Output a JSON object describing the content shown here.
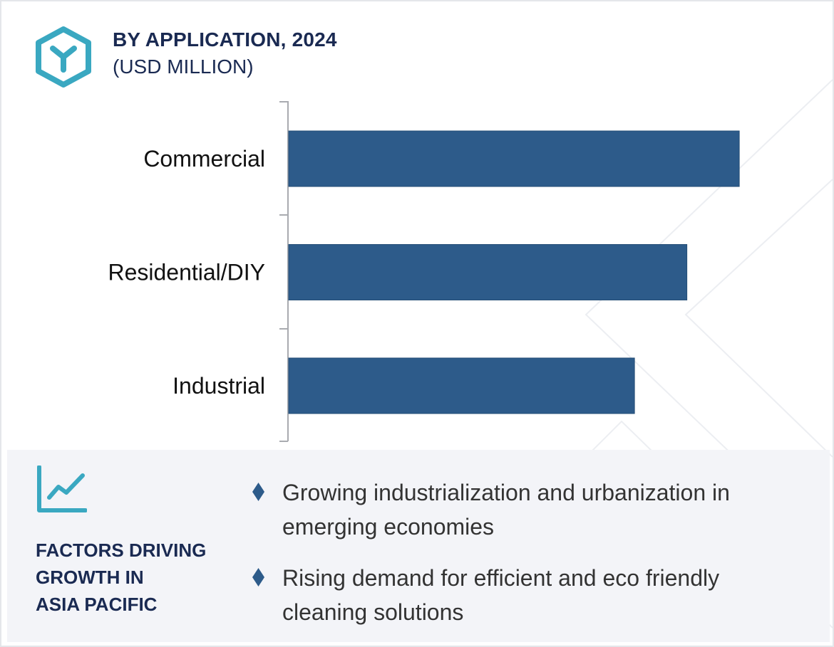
{
  "header": {
    "title": "BY APPLICATION, 2024",
    "subtitle": "(USD MILLION)",
    "logo_icon": "hexagon-y-logo-icon"
  },
  "chart_data": {
    "type": "bar",
    "orientation": "horizontal",
    "title": "BY APPLICATION, 2024",
    "ylabel": "(USD MILLION)",
    "xlabel": "",
    "categories": [
      "Commercial",
      "Residential/DIY",
      "Industrial"
    ],
    "values": [
      86,
      76,
      66
    ],
    "xlim": [
      0,
      100
    ],
    "grid": false,
    "legend": "none",
    "bar_color": "#2d5b8a",
    "note": "No value axis shown; values are relative estimates from bar lengths"
  },
  "factors": {
    "title_lines": [
      "FACTORS DRIVING",
      "GROWTH IN",
      "ASIA PACIFIC"
    ],
    "icon": "trend-chart-icon",
    "bullet_icon": "diamond-bullet-icon",
    "items": [
      {
        "line1": "Growing industrialization and urbanization in",
        "line2": "emerging economies"
      },
      {
        "line1": "Rising demand for efficient and eco friendly",
        "line2": "cleaning solutions"
      }
    ]
  },
  "colors": {
    "accent": "#3aa8c1",
    "navy": "#1a2a52",
    "bar": "#2d5b8a",
    "panel_bg": "#f3f4f8"
  }
}
